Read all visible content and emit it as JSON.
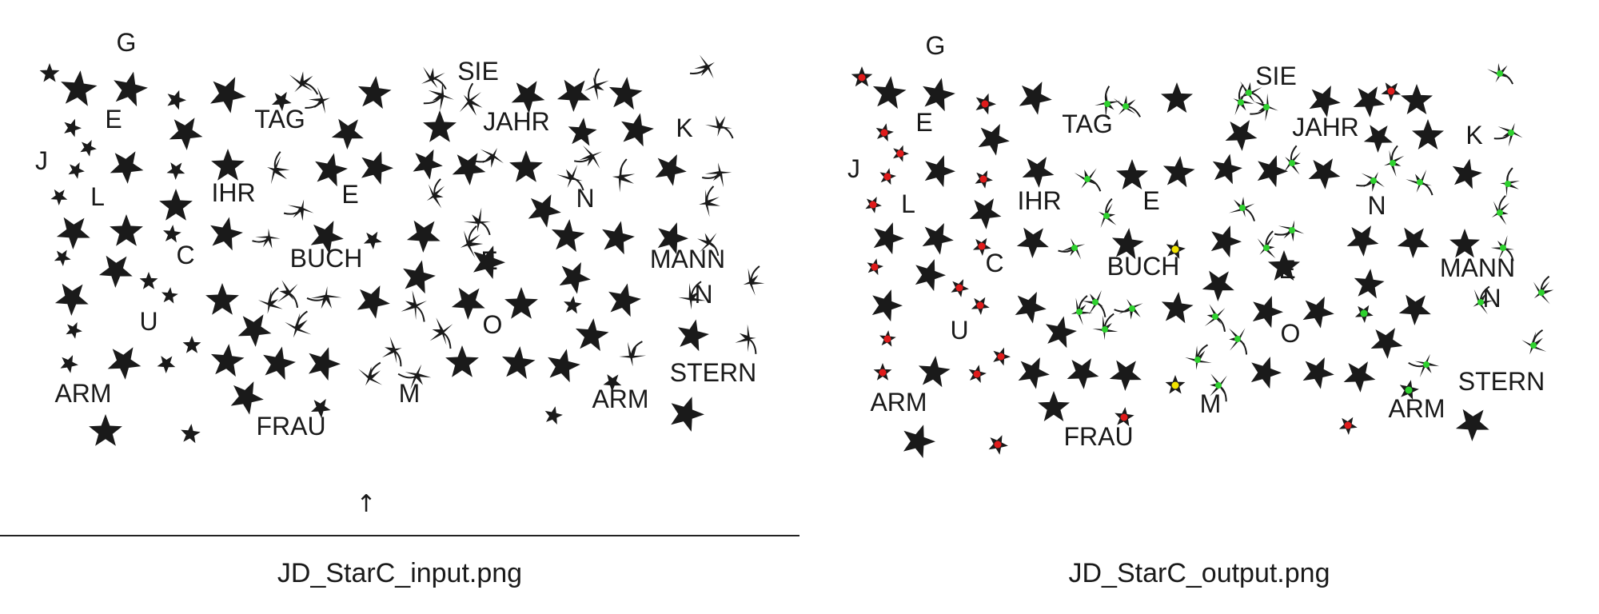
{
  "panels": [
    {
      "caption": "JD_StarC_input.png",
      "words": [
        "G",
        "E",
        "TAG",
        "SIE",
        "JAHR",
        "K",
        "J",
        "L",
        "IHR",
        "E",
        "N",
        "C",
        "BUCH",
        "E",
        "MANN",
        "N",
        "U",
        "O",
        "ARM",
        "FRAU",
        "M",
        "ARM",
        "STERN"
      ],
      "marker_glyph": "↑"
    },
    {
      "caption": "JD_StarC_output.png",
      "words": [
        "G",
        "E",
        "TAG",
        "SIE",
        "JAHR",
        "K",
        "J",
        "L",
        "IHR",
        "E",
        "N",
        "C",
        "BUCH",
        "E",
        "MANN",
        "N",
        "U",
        "O",
        "ARM",
        "FRAU",
        "M",
        "ARM",
        "STERN"
      ]
    }
  ],
  "icons": {
    "star": "star-icon",
    "distorted_star": "distorted-star-icon",
    "arrow": "up-arrow-icon"
  },
  "colors": {
    "star_fill": "#1a1a1a",
    "text": "#1a1a1a",
    "marker_red": "#e01b1b",
    "marker_green": "#2ed12e",
    "marker_yellow": "#f2e400",
    "rule": "#222222"
  }
}
